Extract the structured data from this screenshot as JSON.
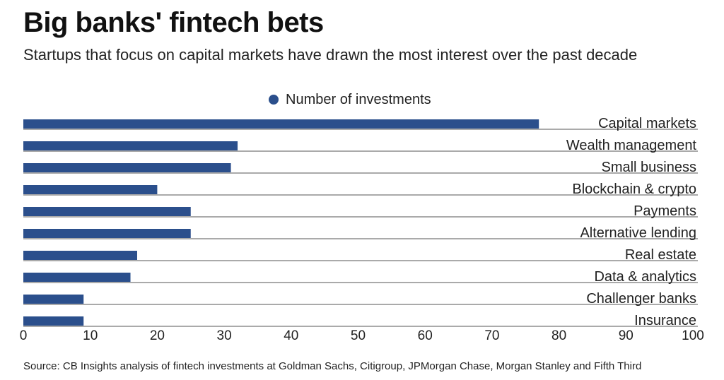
{
  "title": "Big banks' fintech bets",
  "subtitle": "Startups that focus on capital markets have drawn the most interest over the past decade",
  "source": "Source: CB Insights analysis of fintech investments at Goldman Sachs, Citigroup, JPMorgan Chase, Morgan Stanley and Fifth Third",
  "colors": {
    "bar": "#2b4f8c",
    "line": "#555555",
    "text": "#222222"
  },
  "chart_data": {
    "type": "bar",
    "orientation": "horizontal",
    "title": "Big banks' fintech bets",
    "subtitle": "Startups that focus on capital markets have drawn the most interest over the past decade",
    "categories": [
      "Capital markets",
      "Wealth management",
      "Small business",
      "Blockchain & crypto",
      "Payments",
      "Alternative lending",
      "Real estate",
      "Data & analytics",
      "Challenger banks",
      "Insurance"
    ],
    "series": [
      {
        "name": "Number of investments",
        "values": [
          77,
          32,
          31,
          20,
          25,
          25,
          17,
          16,
          9,
          9
        ]
      }
    ],
    "xlim": [
      0,
      100
    ],
    "xticks": [
      0,
      10,
      20,
      30,
      40,
      50,
      60,
      70,
      80,
      90,
      100
    ],
    "legend": "top-center",
    "grid": false
  }
}
